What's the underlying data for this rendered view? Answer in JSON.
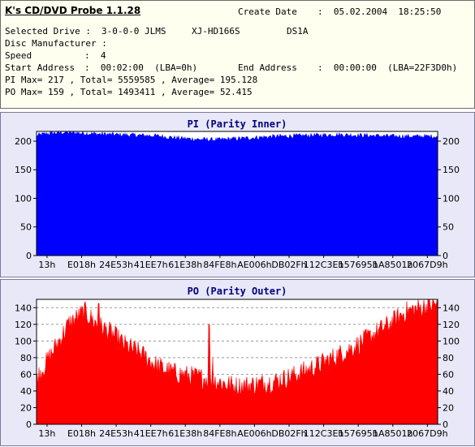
{
  "info": {
    "app_title": "K's CD/DVD Probe 1.1.28",
    "create_date_label": "Create Date",
    "create_date_value": ":  05.02.2004  18:25:50",
    "selected_drive_label": "Selected Drive :",
    "selected_drive_value": "3-0-0-0 JLMS",
    "drive_model": "XJ-HD166S",
    "drive_firmware": "DS1A",
    "disc_manufacturer_label": "Disc Manufacturer :",
    "speed_label": "Speed",
    "speed_value": ":  4",
    "start_address_label": "Start Address",
    "start_address_value": ":  00:02:00  (LBA=0h)",
    "end_address_label": "End Address",
    "end_address_value": ":  00:00:00  (LBA=22F3D0h)",
    "pi_summary": "PI Max= 217 , Total= 5559585 , Average= 195.128",
    "po_summary": "PO Max= 159 , Total= 1493411 , Average= 52.415"
  },
  "colors": {
    "pi": "#0000ff",
    "po": "#ff0000",
    "plot_bg": "#ffffff",
    "panel_bg": "#e8e8f8",
    "title": "#000080"
  },
  "chart_data": [
    {
      "type": "area",
      "title": "PI (Parity Inner)",
      "xlabel": "",
      "ylabel": "",
      "ylim": [
        0,
        217
      ],
      "yticks": [
        0,
        50,
        100,
        150,
        200
      ],
      "right_axis": true,
      "grid": false,
      "x_tick_labels": [
        "13h",
        "E018h",
        "24E53h",
        "41EE7h",
        "61E38h",
        "84FE8h",
        "AE006h",
        "DB02Fh",
        "112C3Eh",
        "157695h",
        "1A8501h",
        "2067D9h"
      ],
      "series": [
        {
          "x": [
            0,
            0.01,
            0.03,
            0.06,
            0.1,
            0.13,
            0.16,
            0.2,
            0.25,
            0.3,
            0.35,
            0.4,
            0.45,
            0.5,
            0.55,
            0.6,
            0.65,
            0.7,
            0.75,
            0.8,
            0.85,
            0.9,
            0.95,
            1.0
          ],
          "values": [
            210,
            212,
            214,
            216,
            215,
            214,
            213,
            212,
            211,
            210,
            206,
            204,
            203,
            205,
            207,
            209,
            210,
            211,
            212,
            211,
            210,
            209,
            209,
            209
          ]
        }
      ]
    },
    {
      "type": "area",
      "title": "PO (Parity Outer)",
      "xlabel": "",
      "ylabel": "",
      "ylim": [
        0,
        150
      ],
      "yticks": [
        0,
        20,
        40,
        60,
        80,
        100,
        120,
        140
      ],
      "right_axis": true,
      "grid": true,
      "x_tick_labels": [
        "13h",
        "E018h",
        "24E53h",
        "41EE7h",
        "61E38h",
        "84FE8h",
        "AE006h",
        "DB02Fh",
        "112C3Eh",
        "157695h",
        "1A8501h",
        "2067D9h"
      ],
      "series": [
        {
          "x": [
            0,
            0.02,
            0.05,
            0.08,
            0.12,
            0.15,
            0.19,
            0.22,
            0.26,
            0.3,
            0.34,
            0.38,
            0.42,
            0.46,
            0.5,
            0.55,
            0.6,
            0.64,
            0.68,
            0.72,
            0.76,
            0.8,
            0.84,
            0.88,
            0.92,
            0.96,
            1.0
          ],
          "values": [
            55,
            70,
            95,
            120,
            135,
            120,
            108,
            95,
            85,
            70,
            62,
            58,
            55,
            50,
            45,
            48,
            52,
            58,
            66,
            75,
            85,
            95,
            108,
            120,
            135,
            140,
            145
          ],
          "spikes": [
            [
              0.155,
              145
            ],
            [
              0.43,
              120
            ],
            [
              0.44,
              80
            ],
            [
              0.975,
              159
            ]
          ]
        }
      ]
    }
  ]
}
